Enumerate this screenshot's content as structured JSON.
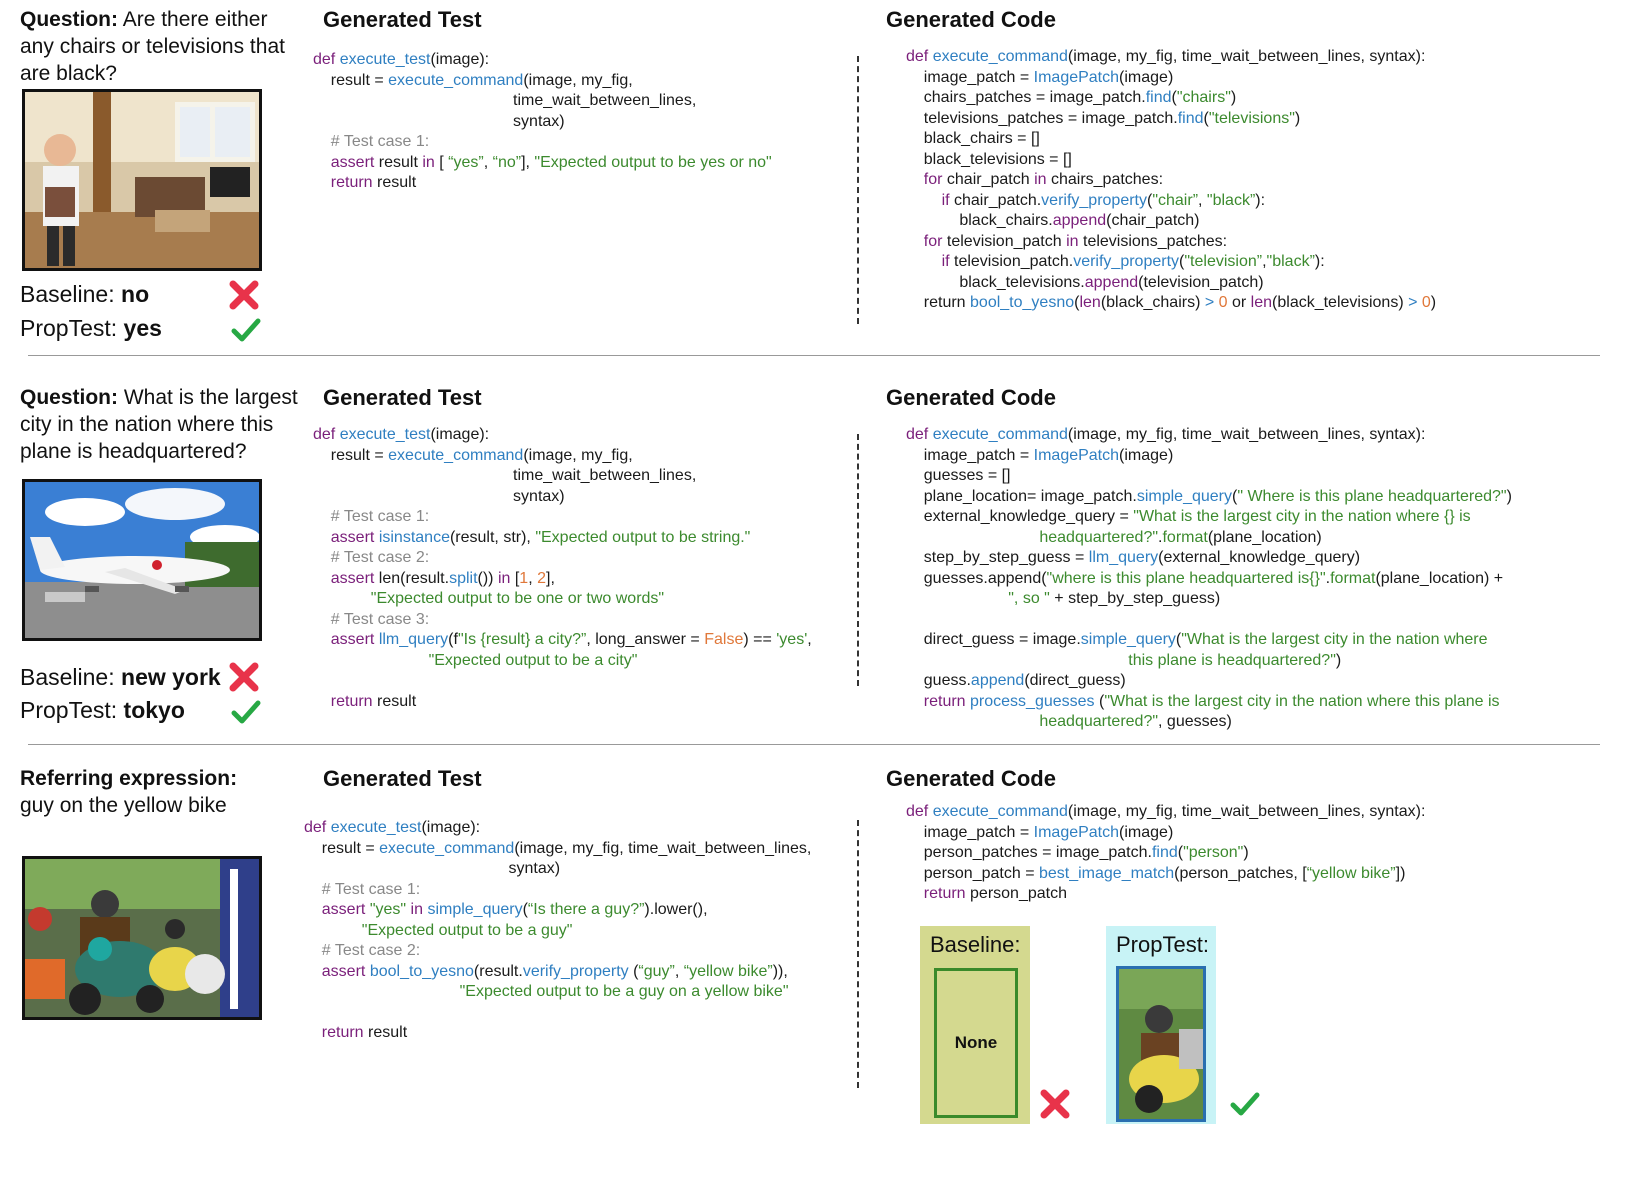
{
  "rows": [
    {
      "question_label": "Question:",
      "question_text": "Are there either any chairs or televisions that are black?",
      "test_header": "Generated Test",
      "code_header": "Generated Code",
      "baseline_label": "Baseline:",
      "baseline_value": "no",
      "proptest_label": "PropTest:",
      "proptest_value": "yes"
    },
    {
      "question_label": "Question:",
      "question_text": "What is the largest city in the nation where this plane is headquartered?",
      "test_header": "Generated Test",
      "code_header": "Generated Code",
      "baseline_label": "Baseline:",
      "baseline_value": "new york",
      "proptest_label": "PropTest:",
      "proptest_value": "tokyo"
    },
    {
      "question_label": "Referring expression:",
      "question_text": "guy on the yellow bike",
      "test_header": "Generated Test",
      "code_header": "Generated Code",
      "baseline_box_label": "Baseline:",
      "baseline_box_value": "None",
      "proptest_box_label": "PropTest:"
    }
  ],
  "colors": {
    "keyword": "#7a1f7a",
    "function": "#2f7fc1",
    "string": "#3c8a2e",
    "comment": "#888888",
    "number": "#e0783a",
    "cross": "#e8334a",
    "check": "#27a844",
    "baseline_box_bg": "#d4d98f",
    "baseline_box_border": "#3a8a2a",
    "proptest_box_bg": "#c8f3f6"
  },
  "icons": [
    "cross-icon",
    "check-icon"
  ]
}
